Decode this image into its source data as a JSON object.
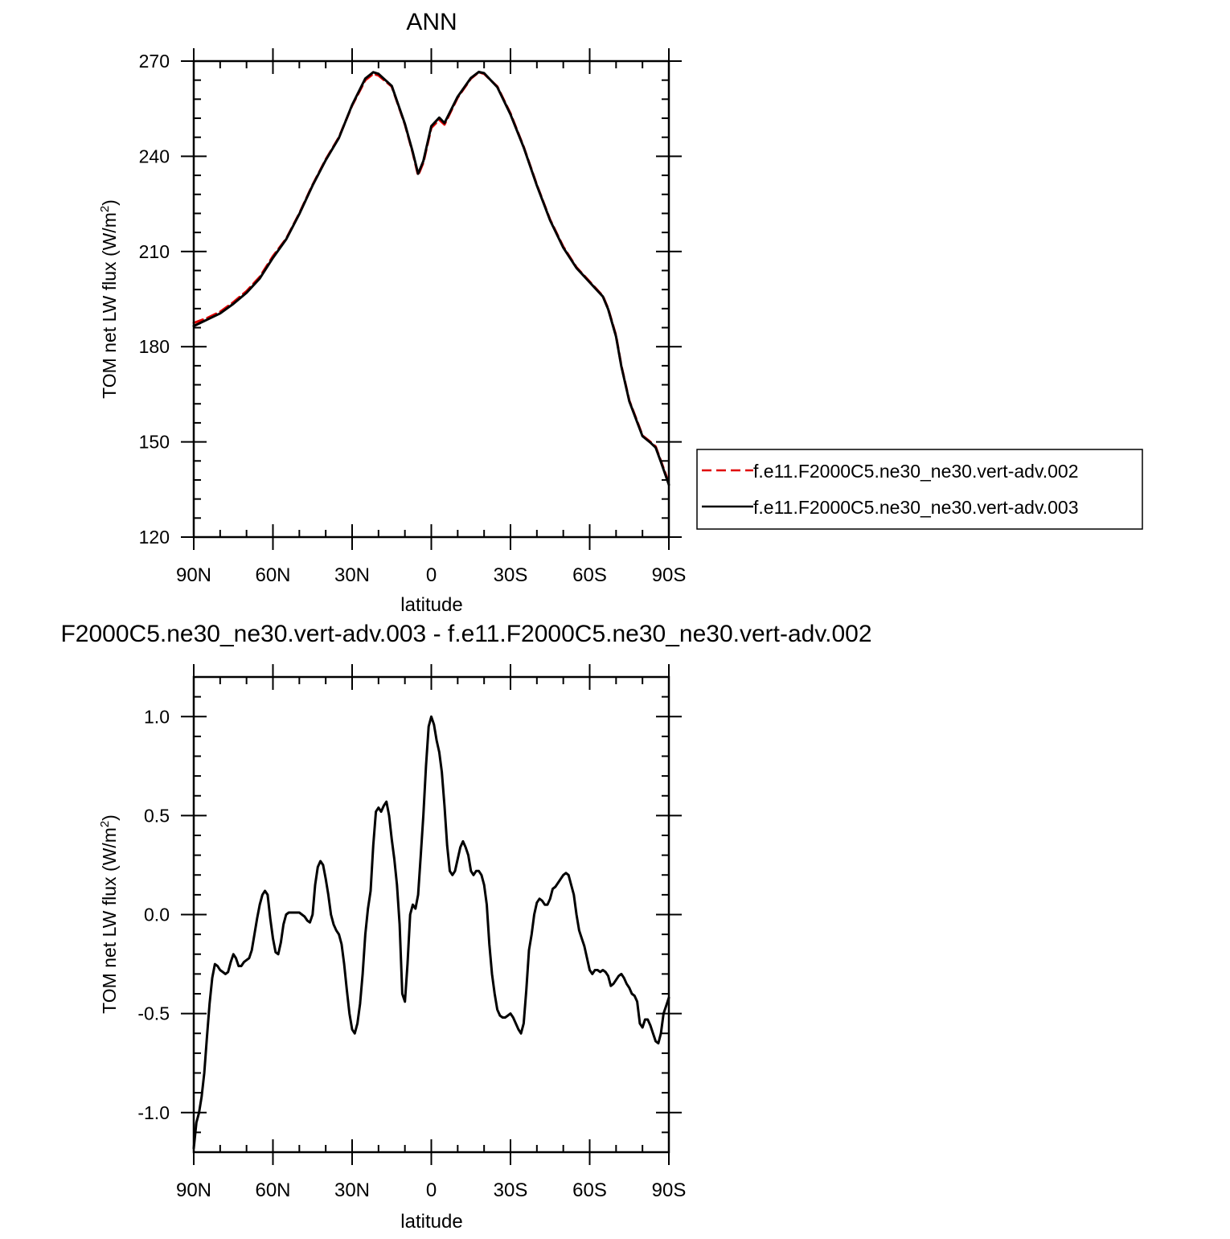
{
  "chart_data": [
    {
      "type": "line",
      "title": "ANN",
      "xlabel": "latitude",
      "ylabel": "TOM net LW flux (W/m",
      "ylabel_sup": "2",
      "ylabel_close": ")",
      "xlim": [
        90,
        -90
      ],
      "ylim": [
        120,
        270
      ],
      "xticks": [
        90,
        60,
        30,
        0,
        -30,
        -60,
        -90
      ],
      "xtick_labels": [
        "90N",
        "60N",
        "30N",
        "0",
        "30S",
        "60S",
        "90S"
      ],
      "yticks": [
        120,
        150,
        180,
        210,
        240,
        270
      ],
      "ytick_labels": [
        "120",
        "150",
        "180",
        "210",
        "240",
        "270"
      ],
      "grid": false,
      "legend_position": "right",
      "series": [
        {
          "name": "f.e11.F2000C5.ne30_ne30.vert-adv.002",
          "color": "#e00000",
          "dash": "dashed",
          "x": [
            90,
            85,
            80,
            75,
            70,
            65,
            60,
            55,
            50,
            45,
            40,
            35,
            30,
            25,
            22,
            20,
            15,
            10,
            7,
            5,
            3,
            0,
            -3,
            -5,
            -10,
            -15,
            -18,
            -20,
            -25,
            -30,
            -35,
            -40,
            -45,
            -50,
            -55,
            -60,
            -65,
            -67,
            -70,
            -72,
            -75,
            -78,
            -80,
            -83,
            -85,
            -87,
            -90
          ],
          "y": [
            187.5,
            189,
            191,
            194,
            197.5,
            202,
            208.5,
            214,
            222,
            231,
            239,
            246,
            256,
            264,
            266,
            265.5,
            262,
            250,
            241,
            234,
            238,
            249,
            251.5,
            250,
            258.5,
            264.5,
            266.5,
            266,
            262,
            253.5,
            243,
            231,
            220,
            211.5,
            205,
            200.5,
            196,
            192,
            183.5,
            174,
            163,
            156.5,
            152,
            150,
            148.5,
            144,
            137
          ]
        },
        {
          "name": "f.e11.F2000C5.ne30_ne30.vert-adv.003",
          "color": "#000000",
          "dash": "solid",
          "x": [
            90,
            85,
            80,
            75,
            70,
            65,
            60,
            55,
            50,
            45,
            40,
            35,
            30,
            25,
            22,
            20,
            15,
            10,
            7,
            5,
            3,
            0,
            -3,
            -5,
            -10,
            -15,
            -18,
            -20,
            -25,
            -30,
            -35,
            -40,
            -45,
            -50,
            -55,
            -60,
            -65,
            -67,
            -70,
            -72,
            -75,
            -78,
            -80,
            -83,
            -85,
            -87,
            -90
          ],
          "y": [
            186.5,
            188.5,
            190.5,
            193.5,
            197,
            201.5,
            208,
            213.8,
            221.8,
            230.8,
            238.8,
            245.8,
            256.2,
            264.5,
            266.5,
            266,
            262.2,
            250.2,
            241.3,
            234.5,
            238.5,
            249.5,
            252.2,
            250.5,
            258.8,
            264.7,
            266.6,
            266.2,
            261.8,
            253.2,
            242.8,
            230.8,
            219.8,
            211.2,
            204.8,
            200.3,
            195.8,
            191.8,
            183.2,
            173.8,
            162.8,
            156.2,
            151.8,
            149.8,
            148.2,
            143.7,
            136.5
          ]
        }
      ]
    },
    {
      "type": "line",
      "title": "F2000C5.ne30_ne30.vert-adv.003 - f.e11.F2000C5.ne30_ne30.vert-adv.002",
      "xlabel": "latitude",
      "ylabel": "TOM net LW flux (W/m",
      "ylabel_sup": "2",
      "ylabel_close": ")",
      "xlim": [
        90,
        -90
      ],
      "ylim": [
        -1.2,
        1.2
      ],
      "xticks": [
        90,
        60,
        30,
        0,
        -30,
        -60,
        -90
      ],
      "xtick_labels": [
        "90N",
        "60N",
        "30N",
        "0",
        "30S",
        "60S",
        "90S"
      ],
      "yticks": [
        -1.0,
        -0.5,
        0.0,
        0.5,
        1.0
      ],
      "ytick_labels": [
        "-1.0",
        "-0.5",
        "0.0",
        "0.5",
        "1.0"
      ],
      "grid": false,
      "series": [
        {
          "color": "#000000",
          "dash": "solid",
          "x": [
            90,
            89,
            88,
            87,
            86,
            85,
            84,
            83,
            82,
            81,
            80,
            79,
            78,
            77,
            76,
            75,
            74,
            73,
            72,
            71,
            70,
            69,
            68,
            67,
            66,
            65,
            64,
            63,
            62,
            61,
            60,
            59,
            58,
            57,
            56,
            55,
            54,
            53,
            52,
            51,
            50,
            49,
            48,
            47,
            46,
            45,
            44,
            43,
            42,
            41,
            40,
            39,
            38,
            37,
            36,
            35,
            34,
            33,
            32,
            31,
            30,
            29,
            28,
            27,
            26,
            25,
            24,
            23,
            22,
            21,
            20,
            19,
            18,
            17,
            16,
            15,
            14,
            13,
            12,
            11,
            10,
            9,
            8,
            7,
            6,
            5,
            4,
            3,
            2,
            1,
            0,
            -1,
            -2,
            -3,
            -4,
            -5,
            -6,
            -7,
            -8,
            -9,
            -10,
            -11,
            -12,
            -13,
            -14,
            -15,
            -16,
            -17,
            -18,
            -19,
            -20,
            -21,
            -22,
            -23,
            -24,
            -25,
            -26,
            -27,
            -28,
            -29,
            -30,
            -31,
            -32,
            -33,
            -34,
            -35,
            -36,
            -37,
            -38,
            -39,
            -40,
            -41,
            -42,
            -43,
            -44,
            -45,
            -46,
            -47,
            -48,
            -49,
            -50,
            -51,
            -52,
            -53,
            -54,
            -55,
            -56,
            -57,
            -58,
            -59,
            -60,
            -61,
            -62,
            -63,
            -64,
            -65,
            -66,
            -67,
            -68,
            -69,
            -70,
            -71,
            -72,
            -73,
            -74,
            -75,
            -76,
            -77,
            -78,
            -79,
            -80,
            -81,
            -82,
            -83,
            -84,
            -85,
            -86,
            -87,
            -88,
            -89,
            -90
          ],
          "y": [
            -1.18,
            -1.05,
            -1.0,
            -0.92,
            -0.8,
            -0.62,
            -0.45,
            -0.32,
            -0.25,
            -0.26,
            -0.28,
            -0.29,
            -0.3,
            -0.29,
            -0.24,
            -0.2,
            -0.22,
            -0.26,
            -0.26,
            -0.24,
            -0.23,
            -0.22,
            -0.18,
            -0.1,
            -0.02,
            0.05,
            0.1,
            0.12,
            0.1,
            -0.02,
            -0.12,
            -0.19,
            -0.2,
            -0.14,
            -0.05,
            0.0,
            0.01,
            0.01,
            0.01,
            0.01,
            0.01,
            0.0,
            -0.01,
            -0.03,
            -0.04,
            0.0,
            0.15,
            0.24,
            0.27,
            0.25,
            0.18,
            0.1,
            0.0,
            -0.05,
            -0.08,
            -0.1,
            -0.15,
            -0.25,
            -0.38,
            -0.5,
            -0.58,
            -0.6,
            -0.55,
            -0.45,
            -0.3,
            -0.1,
            0.03,
            0.12,
            0.35,
            0.52,
            0.54,
            0.52,
            0.55,
            0.57,
            0.5,
            0.38,
            0.28,
            0.15,
            -0.05,
            -0.4,
            -0.44,
            -0.25,
            0.0,
            0.05,
            0.03,
            0.1,
            0.3,
            0.5,
            0.75,
            0.95,
            1.0,
            0.96,
            0.88,
            0.82,
            0.72,
            0.55,
            0.35,
            0.22,
            0.2,
            0.22,
            0.28,
            0.34,
            0.37,
            0.34,
            0.3,
            0.22,
            0.2,
            0.22,
            0.22,
            0.2,
            0.15,
            0.05,
            -0.15,
            -0.3,
            -0.4,
            -0.48,
            -0.51,
            -0.52,
            -0.52,
            -0.51,
            -0.5,
            -0.52,
            -0.55,
            -0.58,
            -0.6,
            -0.55,
            -0.38,
            -0.18,
            -0.1,
            0.0,
            0.06,
            0.08,
            0.07,
            0.05,
            0.05,
            0.08,
            0.13,
            0.14,
            0.16,
            0.18,
            0.2,
            0.21,
            0.2,
            0.15,
            0.1,
            0.0,
            -0.08,
            -0.12,
            -0.16,
            -0.22,
            -0.28,
            -0.3,
            -0.28,
            -0.28,
            -0.29,
            -0.28,
            -0.29,
            -0.31,
            -0.36,
            -0.35,
            -0.33,
            -0.31,
            -0.3,
            -0.32,
            -0.35,
            -0.37,
            -0.4,
            -0.41,
            -0.44,
            -0.55,
            -0.57,
            -0.53,
            -0.53,
            -0.56,
            -0.6,
            -0.64,
            -0.65,
            -0.6,
            -0.5,
            -0.46,
            -0.42
          ]
        }
      ]
    }
  ]
}
